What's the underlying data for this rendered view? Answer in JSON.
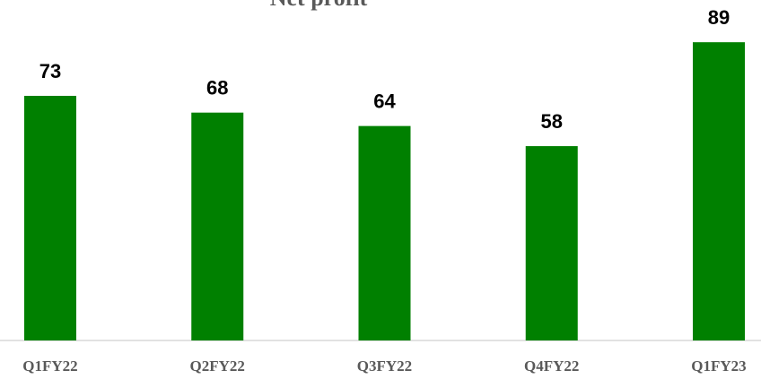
{
  "chart_data": {
    "type": "bar",
    "title": "Net profit",
    "categories": [
      "Q1FY22",
      "Q2FY22",
      "Q3FY22",
      "Q4FY22",
      "Q1FY23"
    ],
    "values": [
      73,
      68,
      64,
      58,
      89
    ],
    "color": "#008000",
    "ylim": [
      0,
      100
    ]
  }
}
